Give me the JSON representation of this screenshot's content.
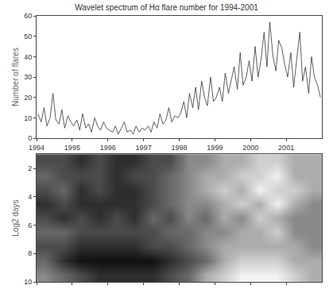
{
  "chart_data": [
    {
      "type": "line",
      "title": "Wavelet spectrum of Hα flare number for 1994-2001",
      "y_label": "Number of flares",
      "color": "#333333",
      "x": [
        1994.04,
        1994.13,
        1994.21,
        1994.29,
        1994.38,
        1994.46,
        1994.54,
        1994.63,
        1994.71,
        1994.79,
        1994.88,
        1994.96,
        1995.04,
        1995.13,
        1995.21,
        1995.29,
        1995.38,
        1995.46,
        1995.54,
        1995.63,
        1995.71,
        1995.79,
        1995.88,
        1995.96,
        1996.04,
        1996.13,
        1996.21,
        1996.29,
        1996.38,
        1996.46,
        1996.54,
        1996.63,
        1996.71,
        1996.79,
        1996.88,
        1996.96,
        1997.04,
        1997.13,
        1997.21,
        1997.29,
        1997.38,
        1997.46,
        1997.54,
        1997.63,
        1997.71,
        1997.79,
        1997.88,
        1997.96,
        1998.04,
        1998.13,
        1998.21,
        1998.29,
        1998.38,
        1998.46,
        1998.54,
        1998.63,
        1998.71,
        1998.79,
        1998.88,
        1998.96,
        1999.04,
        1999.13,
        1999.21,
        1999.29,
        1999.38,
        1999.46,
        1999.54,
        1999.63,
        1999.71,
        1999.79,
        1999.88,
        1999.96,
        2000.04,
        2000.13,
        2000.21,
        2000.29,
        2000.38,
        2000.46,
        2000.54,
        2000.63,
        2000.71,
        2000.79,
        2000.88,
        2000.96,
        2001.04,
        2001.13,
        2001.21,
        2001.29,
        2001.38,
        2001.46,
        2001.54,
        2001.63,
        2001.71,
        2001.79,
        2001.88,
        2001.96
      ],
      "values": [
        12,
        8,
        15,
        6,
        10,
        22,
        9,
        7,
        14,
        5,
        11,
        8,
        6,
        9,
        4,
        12,
        5,
        7,
        3,
        10,
        6,
        4,
        8,
        5,
        4,
        3,
        6,
        2,
        5,
        8,
        3,
        4,
        2,
        6,
        3,
        5,
        4,
        6,
        3,
        8,
        5,
        12,
        7,
        9,
        15,
        8,
        11,
        10,
        12,
        18,
        10,
        22,
        15,
        25,
        14,
        28,
        20,
        16,
        30,
        18,
        20,
        25,
        18,
        32,
        22,
        28,
        35,
        24,
        42,
        26,
        30,
        38,
        28,
        45,
        30,
        38,
        52,
        35,
        57,
        40,
        33,
        48,
        44,
        36,
        30,
        42,
        25,
        38,
        52,
        28,
        35,
        22,
        40,
        30,
        26,
        20
      ],
      "xlim": [
        1994,
        2002
      ],
      "xticks": [
        1994,
        1995,
        1996,
        1997,
        1998,
        1999,
        2000,
        2001
      ],
      "ylim": [
        0,
        60
      ],
      "yticks": [
        0,
        10,
        20,
        30,
        40,
        50,
        60
      ]
    },
    {
      "type": "heatmap",
      "y_label": "Log2 days",
      "tick_labels": "y",
      "x": [
        1994.25,
        1994.75,
        1995.25,
        1995.75,
        1996.25,
        1996.75,
        1997.25,
        1997.75,
        1998.25,
        1998.75,
        1999.25,
        1999.75,
        2000.25,
        2000.75,
        2001.25,
        2001.75
      ],
      "y": [
        1.5,
        2.5,
        3.5,
        4.5,
        5.5,
        6.5,
        7.5,
        8.5,
        9.5
      ],
      "z": [
        [
          3,
          3,
          2,
          3,
          2,
          2,
          3,
          3,
          5,
          5,
          6,
          6,
          7,
          7,
          6,
          6
        ],
        [
          4,
          3,
          3,
          3,
          2,
          3,
          3,
          4,
          5,
          6,
          6,
          7,
          7,
          8,
          6,
          6
        ],
        [
          3,
          4,
          2,
          3,
          2,
          2,
          3,
          4,
          5,
          6,
          7,
          6,
          8,
          7,
          7,
          6
        ],
        [
          2,
          3,
          2,
          2,
          2,
          2,
          3,
          4,
          5,
          5,
          6,
          7,
          6,
          8,
          6,
          5
        ],
        [
          3,
          2,
          3,
          2,
          3,
          2,
          4,
          3,
          5,
          4,
          6,
          5,
          7,
          6,
          5,
          5
        ],
        [
          4,
          4,
          3,
          3,
          3,
          3,
          3,
          4,
          4,
          5,
          5,
          6,
          6,
          7,
          5,
          5
        ],
        [
          3,
          3,
          2,
          2,
          2,
          2,
          3,
          3,
          4,
          5,
          6,
          6,
          6,
          6,
          6,
          5
        ],
        [
          4,
          2,
          1,
          1,
          1,
          1,
          1,
          2,
          3,
          4,
          6,
          7,
          7,
          7,
          6,
          6
        ],
        [
          5,
          4,
          3,
          2,
          2,
          2,
          2,
          3,
          4,
          6,
          7,
          8,
          8,
          8,
          7,
          6
        ]
      ],
      "xlim": [
        1994,
        2002
      ],
      "xticks": [
        1994,
        1995,
        1996,
        1997,
        1998,
        1999,
        2000,
        2001
      ],
      "ylim": [
        10,
        1
      ],
      "yticks": [
        2,
        4,
        6,
        8,
        10
      ]
    }
  ]
}
